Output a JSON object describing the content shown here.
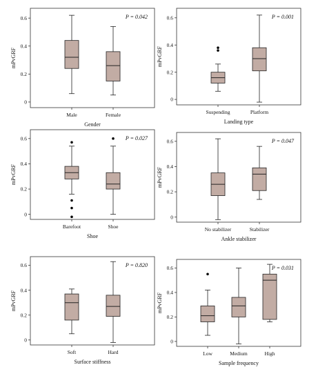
{
  "chart_data": [
    {
      "type": "box",
      "p_label": "P = 0.042",
      "ylabel": "mPvGRF",
      "xlabel": "Gender",
      "ylim": [
        -0.04,
        0.67
      ],
      "yticks": [
        "0",
        "0.2",
        "0.4",
        "0.6"
      ],
      "categories": [
        "Male",
        "Female"
      ],
      "boxes": [
        {
          "whisker_low": 0.06,
          "q1": 0.24,
          "median": 0.32,
          "q3": 0.44,
          "whisker_high": 0.62,
          "outliers": []
        },
        {
          "whisker_low": 0.05,
          "q1": 0.15,
          "median": 0.26,
          "q3": 0.36,
          "whisker_high": 0.54,
          "outliers": []
        }
      ]
    },
    {
      "type": "box",
      "p_label": "P = 0.001",
      "ylabel": "mPvGRF",
      "xlabel": "Landing type",
      "ylim": [
        -0.04,
        0.67
      ],
      "yticks": [
        "0",
        "0.2",
        "0.4",
        "0.6"
      ],
      "categories": [
        "Suspending",
        "Platform"
      ],
      "boxes": [
        {
          "whisker_low": 0.06,
          "q1": 0.12,
          "median": 0.16,
          "q3": 0.2,
          "whisker_high": 0.26,
          "outliers": [
            0.36,
            0.38
          ]
        },
        {
          "whisker_low": -0.02,
          "q1": 0.21,
          "median": 0.3,
          "q3": 0.38,
          "whisker_high": 0.62,
          "outliers": []
        }
      ]
    },
    {
      "type": "box",
      "p_label": "P = 0.027",
      "ylabel": "mPvGRF",
      "xlabel": "Shoe",
      "ylim": [
        -0.04,
        0.67
      ],
      "yticks": [
        "0",
        "0.2",
        "0.4",
        "0.6"
      ],
      "categories": [
        "Barefoot",
        "Shoe"
      ],
      "boxes": [
        {
          "whisker_low": 0.16,
          "q1": 0.28,
          "median": 0.33,
          "q3": 0.38,
          "whisker_high": 0.54,
          "outliers": [
            0.57,
            0.11,
            0.05,
            -0.02
          ]
        },
        {
          "whisker_low": 0.0,
          "q1": 0.2,
          "median": 0.24,
          "q3": 0.33,
          "whisker_high": 0.54,
          "outliers": [
            0.6
          ]
        }
      ]
    },
    {
      "type": "box",
      "p_label": "P = 0.047",
      "ylabel": "mPvGRF",
      "xlabel": "Ankle stabilizer",
      "ylim": [
        -0.04,
        0.67
      ],
      "yticks": [
        "0",
        "0.2",
        "0.4",
        "0.6"
      ],
      "categories": [
        "No stabilizer",
        "Stabilizer"
      ],
      "boxes": [
        {
          "whisker_low": -0.02,
          "q1": 0.17,
          "median": 0.26,
          "q3": 0.35,
          "whisker_high": 0.62,
          "outliers": []
        },
        {
          "whisker_low": 0.14,
          "q1": 0.21,
          "median": 0.34,
          "q3": 0.39,
          "whisker_high": 0.56,
          "outliers": []
        }
      ]
    },
    {
      "type": "box",
      "p_label": "P = 0.820",
      "ylabel": "mPvGRF",
      "xlabel": "Surface stiffness",
      "ylim": [
        -0.04,
        0.67
      ],
      "yticks": [
        "0",
        "0.2",
        "0.4",
        "0.6"
      ],
      "categories": [
        "Soft",
        "Hard"
      ],
      "boxes": [
        {
          "whisker_low": 0.05,
          "q1": 0.16,
          "median": 0.3,
          "q3": 0.37,
          "whisker_high": 0.41,
          "outliers": []
        },
        {
          "whisker_low": -0.02,
          "q1": 0.19,
          "median": 0.27,
          "q3": 0.36,
          "whisker_high": 0.63,
          "outliers": []
        }
      ]
    },
    {
      "type": "box",
      "p_label": "P = 0.031",
      "ylabel": "mPvGRF",
      "xlabel": "Sample frequency",
      "ylim": [
        -0.04,
        0.67
      ],
      "yticks": [
        "0",
        "0.2",
        "0.4",
        "0.6"
      ],
      "categories": [
        "Low",
        "Medium",
        "High"
      ],
      "boxes": [
        {
          "whisker_low": 0.05,
          "q1": 0.16,
          "median": 0.21,
          "q3": 0.29,
          "whisker_high": 0.42,
          "outliers": [
            0.55
          ]
        },
        {
          "whisker_low": -0.02,
          "q1": 0.2,
          "median": 0.29,
          "q3": 0.36,
          "whisker_high": 0.6,
          "outliers": []
        },
        {
          "whisker_low": 0.16,
          "q1": 0.18,
          "median": 0.5,
          "q3": 0.55,
          "whisker_high": 0.63,
          "outliers": []
        }
      ]
    }
  ],
  "style": {
    "box_fill": "#c2aca4",
    "line_color": "#222222",
    "axis_color": "#333333"
  }
}
